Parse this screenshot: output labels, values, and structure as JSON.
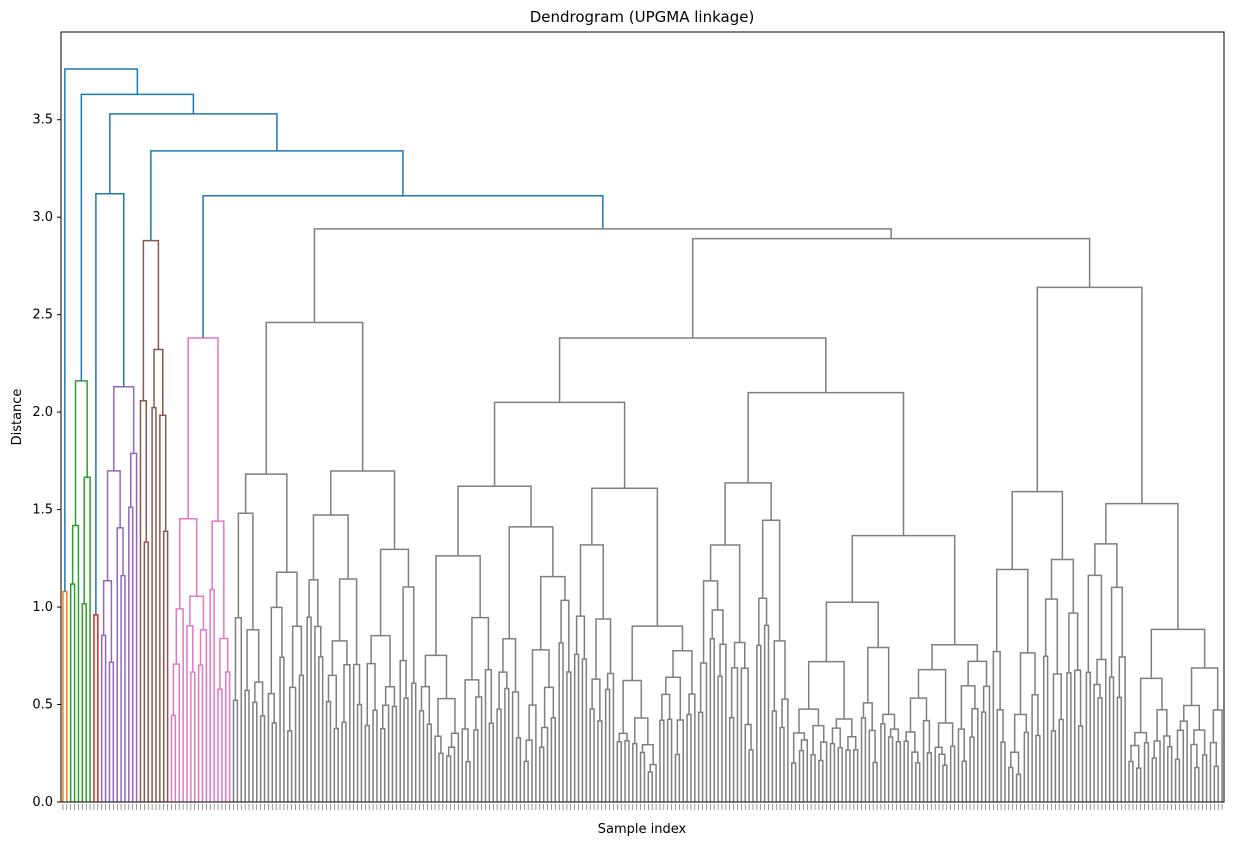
{
  "chart_data": {
    "type": "dendrogram",
    "title": "Dendrogram (UPGMA linkage)",
    "xlabel": "Sample index",
    "ylabel": "Distance",
    "ylim": [
      0,
      3.95
    ],
    "yticks": [
      0.0,
      0.5,
      1.0,
      1.5,
      2.0,
      2.5,
      3.0,
      3.5
    ],
    "ytick_labels": [
      "0.0",
      "0.5",
      "1.0",
      "1.5",
      "2.0",
      "2.5",
      "3.0",
      "3.5"
    ],
    "leaf_count": 300,
    "leaf_labels_legible": false,
    "grid": false,
    "above_threshold_color": "#1f77b4",
    "clusters": [
      {
        "color": "#ff7f0e",
        "leaves": 2,
        "height": 1.08
      },
      {
        "color": "#2ca02c",
        "leaves": 6,
        "height": 2.16
      },
      {
        "color": "#d62728",
        "leaves": 2,
        "height": 0.96
      },
      {
        "color": "#9467bd",
        "leaves": 10,
        "height": 2.13
      },
      {
        "color": "#8c564b",
        "leaves": 8,
        "height": 2.88
      },
      {
        "color": "#e377c2",
        "leaves": 16,
        "height": 2.38
      },
      {
        "color": "#7f7f7f",
        "leaves": 256,
        "height": 2.94
      }
    ],
    "gray_subclusters": [
      {
        "leaves": 48,
        "height": 2.46,
        "parent": "root"
      },
      {
        "leaves": 72,
        "height": 2.05,
        "parent": "mid"
      },
      {
        "leaves": 76,
        "height": 2.1,
        "parent": "mid"
      },
      {
        "leaves": 60,
        "height": 2.64,
        "parent": "right"
      }
    ],
    "gray_merges": {
      "mid": 2.38,
      "right": 2.89,
      "root": 2.94
    },
    "top_merges": [
      3.11,
      3.34,
      3.53,
      3.63,
      3.76
    ]
  }
}
